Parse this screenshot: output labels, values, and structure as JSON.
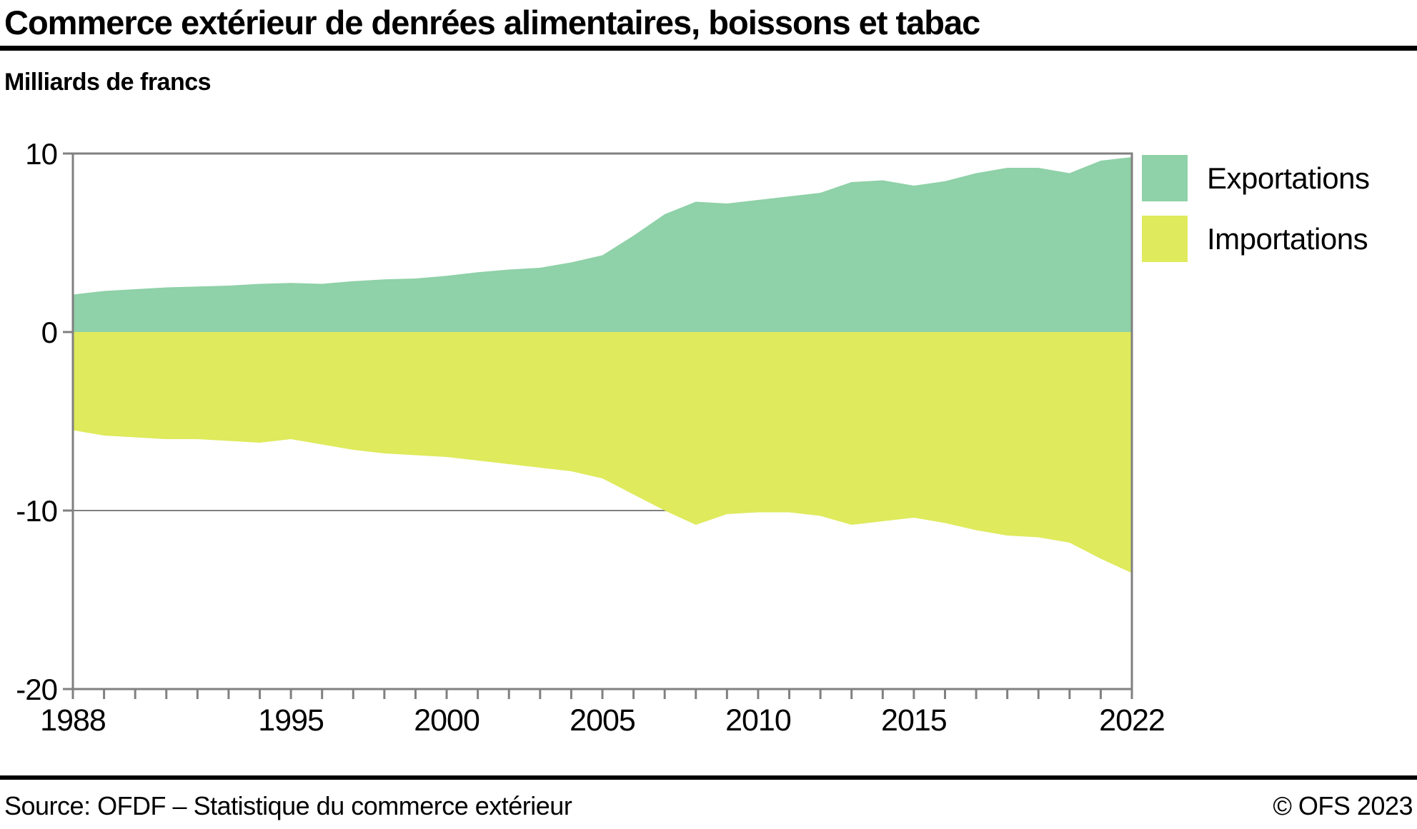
{
  "header": {
    "title": "Commerce extérieur de denrées alimentaires, boissons et tabac",
    "subtitle": "Milliards de francs"
  },
  "legend": {
    "items": [
      {
        "label": "Exportations",
        "color": "#8fd1a8"
      },
      {
        "label": "Importations",
        "color": "#dfea5c"
      }
    ]
  },
  "footer": {
    "source": "Source: OFDF – Statistique du commerce extérieur",
    "copyright": "© OFS 2023"
  },
  "chart_data": {
    "type": "area",
    "title": "Commerce extérieur de denrées alimentaires, boissons et tabac",
    "xlabel": "",
    "ylabel": "Milliards de francs",
    "x": [
      1988,
      1989,
      1990,
      1991,
      1992,
      1993,
      1994,
      1995,
      1996,
      1997,
      1998,
      1999,
      2000,
      2001,
      2002,
      2003,
      2004,
      2005,
      2006,
      2007,
      2008,
      2009,
      2010,
      2011,
      2012,
      2013,
      2014,
      2015,
      2016,
      2017,
      2018,
      2019,
      2020,
      2021,
      2022
    ],
    "series": [
      {
        "name": "Exportations",
        "color": "#8fd1a8",
        "values": [
          2.1,
          2.3,
          2.4,
          2.5,
          2.55,
          2.6,
          2.7,
          2.75,
          2.7,
          2.85,
          2.95,
          3.0,
          3.15,
          3.35,
          3.5,
          3.6,
          3.9,
          4.3,
          5.4,
          6.6,
          7.3,
          7.2,
          7.4,
          7.6,
          7.8,
          8.4,
          8.5,
          8.2,
          8.45,
          8.9,
          9.2,
          9.2,
          8.9,
          9.6,
          9.8
        ]
      },
      {
        "name": "Importations",
        "color": "#dfea5c",
        "values": [
          -5.5,
          -5.8,
          -5.9,
          -6.0,
          -6.0,
          -6.1,
          -6.2,
          -6.0,
          -6.3,
          -6.6,
          -6.8,
          -6.9,
          -7.0,
          -7.2,
          -7.4,
          -7.6,
          -7.8,
          -8.2,
          -9.1,
          -10.0,
          -10.8,
          -10.2,
          -10.1,
          -10.1,
          -10.3,
          -10.8,
          -10.6,
          -10.4,
          -10.7,
          -11.1,
          -11.4,
          -11.5,
          -11.8,
          -12.7,
          -13.5
        ]
      }
    ],
    "xlim": [
      1988,
      2022
    ],
    "ylim": [
      -20,
      10
    ],
    "y_ticks": [
      10,
      0,
      -10,
      -20
    ],
    "x_tick_labels": [
      1988,
      1995,
      2000,
      2005,
      2010,
      2015,
      2022
    ],
    "x_minor_tick_interval": 1,
    "gridlines_y": [
      -10
    ],
    "grid": "horizontal line at -10 only, drawn behind areas",
    "legend_position": "outside-top-right",
    "axis_color": "#808080",
    "tick_label_color": "#000000"
  }
}
